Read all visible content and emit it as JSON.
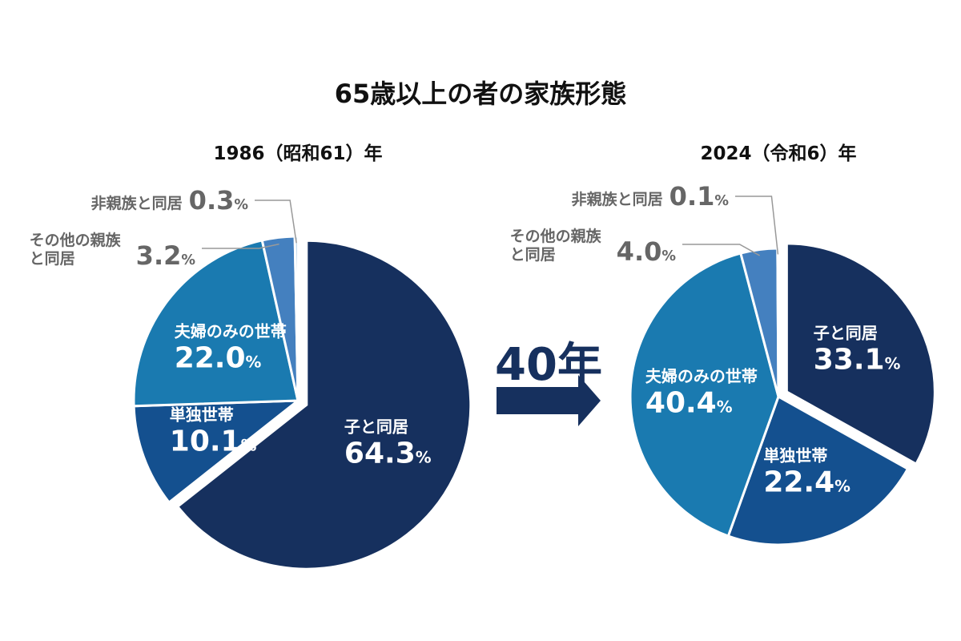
{
  "title": "65歳以上の者の家族形態",
  "arrow_label": "40年",
  "chart_data": [
    {
      "type": "pie",
      "subtitle": "1986（昭和61）年",
      "categories": [
        "子と同居",
        "単独世帯",
        "夫婦のみの世帯",
        "その他の親族と同居",
        "非親族と同居"
      ],
      "values": [
        64.3,
        10.1,
        22.0,
        3.2,
        0.3
      ],
      "value_labels": [
        "64.3%",
        "10.1%",
        "22.0%",
        "3.2%",
        "0.3%"
      ],
      "colors": [
        "#16305e",
        "#14508f",
        "#1a7ab0",
        "#4480bf",
        "#8db8dc"
      ]
    },
    {
      "type": "pie",
      "subtitle": "2024（令和6）年",
      "categories": [
        "子と同居",
        "単独世帯",
        "夫婦のみの世帯",
        "その他の親族と同居",
        "非親族と同居"
      ],
      "values": [
        33.1,
        22.4,
        40.4,
        4.0,
        0.1
      ],
      "value_labels": [
        "33.1%",
        "22.4%",
        "40.4%",
        "4.0%",
        "0.1%"
      ],
      "colors": [
        "#16305e",
        "#14508f",
        "#1a7ab0",
        "#4480bf",
        "#8db8dc"
      ]
    }
  ]
}
